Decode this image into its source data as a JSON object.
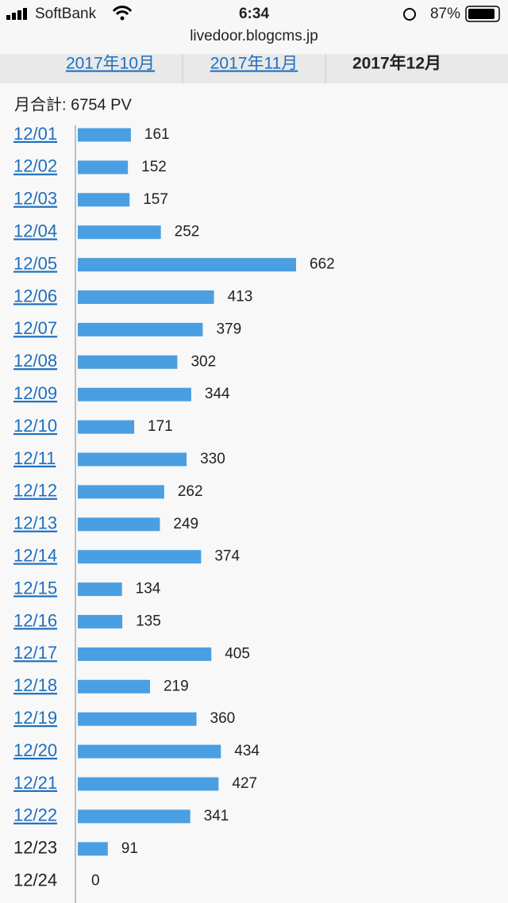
{
  "status_bar": {
    "carrier": "SoftBank",
    "time": "6:34",
    "battery": "87%"
  },
  "url": "livedoor.blogcms.jp",
  "tabs": [
    "2017年10月",
    "2017年11月",
    "2017年12月"
  ],
  "total": "月合計: 6754 PV",
  "chart_data": {
    "type": "bar",
    "categories": [
      "12/01",
      "12/02",
      "12/03",
      "12/04",
      "12/05",
      "12/06",
      "12/07",
      "12/08",
      "12/09",
      "12/10",
      "12/11",
      "12/12",
      "12/13",
      "12/14",
      "12/15",
      "12/16",
      "12/17",
      "12/18",
      "12/19",
      "12/20",
      "12/21",
      "12/22",
      "12/23",
      "12/24"
    ],
    "category_links": [
      true,
      true,
      true,
      true,
      true,
      true,
      true,
      true,
      true,
      true,
      true,
      true,
      true,
      true,
      true,
      true,
      true,
      true,
      true,
      true,
      true,
      true,
      false,
      false
    ],
    "values": [
      161,
      152,
      157,
      252,
      662,
      413,
      379,
      302,
      344,
      171,
      330,
      262,
      249,
      374,
      134,
      135,
      405,
      219,
      360,
      434,
      427,
      341,
      91,
      0
    ],
    "color": "#4a9fe3"
  }
}
